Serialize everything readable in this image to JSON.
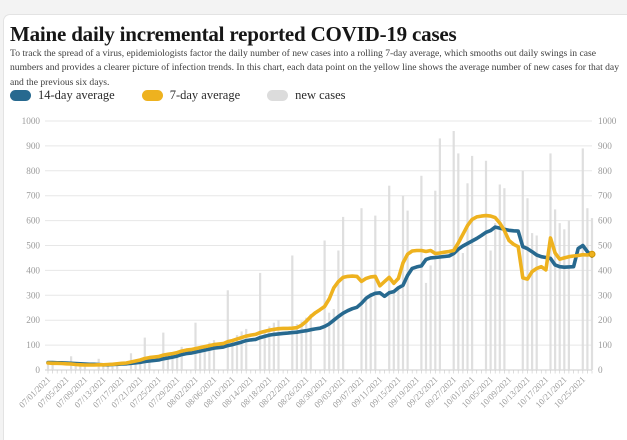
{
  "page": {
    "title": "Maine daily incremental reported COVID-19 cases",
    "description": "To track the spread of a virus, epidemiologists factor the daily number of new cases into a rolling 7-day average, which smooths out daily swings in case numbers and provides a clearer picture of infection trends. In this chart, each data point on the yellow line shows the average number of new cases for that day and the previous six days."
  },
  "colors": {
    "avg14_blue": "#27698f",
    "avg7_yellow": "#eeb21f",
    "new_cases_gray": "#dcdcdc",
    "grid": "#e7e7e7",
    "axis_text": "#9b9b9b"
  },
  "legend": [
    {
      "label": "14-day average",
      "color": "#27698f"
    },
    {
      "label": "7-day average",
      "color": "#eeb21f"
    },
    {
      "label": "new cases",
      "color": "#dcdcdc"
    }
  ],
  "chart_data": {
    "type": "bar+line",
    "title": "Maine daily incremental reported COVID-19 cases",
    "xlabel": "",
    "ylabel": "",
    "ylim": [
      0,
      1000
    ],
    "grid": true,
    "legend_position": "top",
    "y_ticks": [
      0,
      100,
      200,
      300,
      400,
      500,
      600,
      700,
      800,
      900,
      1000
    ],
    "x_tick_labels": [
      "07/01/2021",
      "07/05/2021",
      "07/09/2021",
      "07/13/2021",
      "07/17/2021",
      "07/21/2021",
      "07/25/2021",
      "07/29/2021",
      "08/02/2021",
      "08/06/2021",
      "08/10/2021",
      "08/14/2021",
      "08/18/2021",
      "08/22/2021",
      "08/26/2021",
      "08/30/2021",
      "09/03/2021",
      "09/07/2021",
      "09/11/2021",
      "09/15/2021",
      "09/19/2021",
      "09/23/2021",
      "09/27/2021",
      "10/01/2021",
      "10/05/2021",
      "10/09/2021",
      "10/13/2021",
      "10/17/2021",
      "10/21/2021",
      "10/25/2021"
    ],
    "dates": [
      "07/01/2021",
      "07/02/2021",
      "07/03/2021",
      "07/04/2021",
      "07/05/2021",
      "07/06/2021",
      "07/07/2021",
      "07/08/2021",
      "07/09/2021",
      "07/10/2021",
      "07/11/2021",
      "07/12/2021",
      "07/13/2021",
      "07/14/2021",
      "07/15/2021",
      "07/16/2021",
      "07/17/2021",
      "07/18/2021",
      "07/19/2021",
      "07/20/2021",
      "07/21/2021",
      "07/22/2021",
      "07/23/2021",
      "07/24/2021",
      "07/25/2021",
      "07/26/2021",
      "07/27/2021",
      "07/28/2021",
      "07/29/2021",
      "07/30/2021",
      "07/31/2021",
      "08/01/2021",
      "08/02/2021",
      "08/03/2021",
      "08/04/2021",
      "08/05/2021",
      "08/06/2021",
      "08/07/2021",
      "08/08/2021",
      "08/09/2021",
      "08/10/2021",
      "08/11/2021",
      "08/12/2021",
      "08/13/2021",
      "08/14/2021",
      "08/15/2021",
      "08/16/2021",
      "08/17/2021",
      "08/18/2021",
      "08/19/2021",
      "08/20/2021",
      "08/21/2021",
      "08/22/2021",
      "08/23/2021",
      "08/24/2021",
      "08/25/2021",
      "08/26/2021",
      "08/27/2021",
      "08/28/2021",
      "08/29/2021",
      "08/30/2021",
      "08/31/2021",
      "09/01/2021",
      "09/02/2021",
      "09/03/2021",
      "09/04/2021",
      "09/05/2021",
      "09/06/2021",
      "09/07/2021",
      "09/08/2021",
      "09/09/2021",
      "09/10/2021",
      "09/11/2021",
      "09/12/2021",
      "09/13/2021",
      "09/14/2021",
      "09/15/2021",
      "09/16/2021",
      "09/17/2021",
      "09/18/2021",
      "09/19/2021",
      "09/20/2021",
      "09/21/2021",
      "09/22/2021",
      "09/23/2021",
      "09/24/2021",
      "09/25/2021",
      "09/26/2021",
      "09/27/2021",
      "09/28/2021",
      "09/29/2021",
      "09/30/2021",
      "10/01/2021",
      "10/02/2021",
      "10/03/2021",
      "10/04/2021",
      "10/05/2021",
      "10/06/2021",
      "10/07/2021",
      "10/08/2021",
      "10/09/2021",
      "10/10/2021",
      "10/11/2021",
      "10/12/2021",
      "10/13/2021",
      "10/14/2021",
      "10/15/2021",
      "10/16/2021",
      "10/17/2021",
      "10/18/2021",
      "10/19/2021",
      "10/20/2021",
      "10/21/2021",
      "10/22/2021",
      "10/23/2021",
      "10/24/2021",
      "10/25/2021",
      "10/26/2021",
      "10/27/2021"
    ],
    "series": [
      {
        "name": "new cases",
        "type": "bar",
        "color": "#dcdcdc",
        "values": [
          30,
          25,
          0,
          0,
          0,
          55,
          22,
          20,
          18,
          0,
          0,
          45,
          15,
          20,
          25,
          28,
          0,
          0,
          67,
          35,
          40,
          130,
          45,
          0,
          0,
          150,
          60,
          70,
          75,
          93,
          0,
          0,
          190,
          85,
          100,
          110,
          120,
          0,
          0,
          320,
          115,
          140,
          155,
          165,
          0,
          0,
          390,
          160,
          175,
          190,
          200,
          0,
          0,
          460,
          185,
          195,
          210,
          225,
          0,
          0,
          520,
          230,
          245,
          480,
          615,
          0,
          0,
          0,
          650,
          290,
          310,
          620,
          0,
          0,
          740,
          310,
          330,
          700,
          640,
          0,
          0,
          780,
          350,
          420,
          720,
          930,
          0,
          0,
          960,
          870,
          470,
          750,
          860,
          0,
          0,
          840,
          480,
          590,
          745,
          730,
          0,
          0,
          0,
          800,
          690,
          550,
          540,
          0,
          0,
          870,
          645,
          590,
          565,
          600,
          0,
          0,
          890,
          650,
          610
        ]
      },
      {
        "name": "14-day average",
        "type": "line",
        "color": "#27698f",
        "values": [
          30,
          30,
          29,
          29,
          28,
          27,
          26,
          25,
          24,
          23,
          23,
          22,
          21,
          21,
          22,
          23,
          24,
          25,
          27,
          29,
          31,
          34,
          36,
          38,
          40,
          45,
          48,
          52,
          56,
          62,
          66,
          68,
          72,
          76,
          80,
          84,
          88,
          90,
          92,
          98,
          102,
          107,
          112,
          118,
          121,
          123,
          130,
          135,
          140,
          143,
          145,
          147,
          148,
          150,
          152,
          155,
          158,
          162,
          165,
          168,
          175,
          185,
          200,
          215,
          228,
          238,
          246,
          252,
          268,
          288,
          300,
          308,
          310,
          296,
          310,
          315,
          330,
          340,
          380,
          408,
          414,
          418,
          444,
          450,
          452,
          454,
          456,
          458,
          468,
          485,
          498,
          508,
          518,
          528,
          540,
          553,
          560,
          574,
          570,
          565,
          561,
          559,
          558,
          495,
          487,
          475,
          462,
          455,
          452,
          448,
          422,
          415,
          413,
          414,
          415,
          488,
          500,
          475,
          458
        ]
      },
      {
        "name": "7-day average",
        "type": "line",
        "color": "#eeb21f",
        "values": [
          28,
          27,
          27,
          26,
          25,
          24,
          22,
          21,
          20,
          20,
          20,
          21,
          21,
          22,
          23,
          25,
          27,
          28,
          32,
          36,
          40,
          46,
          50,
          52,
          54,
          60,
          63,
          66,
          70,
          76,
          80,
          82,
          86,
          90,
          94,
          98,
          102,
          104,
          106,
          114,
          118,
          124,
          130,
          136,
          140,
          143,
          150,
          155,
          160,
          163,
          166,
          167,
          167,
          168,
          170,
          180,
          195,
          215,
          230,
          242,
          255,
          285,
          330,
          355,
          372,
          376,
          377,
          376,
          356,
          368,
          374,
          376,
          338,
          355,
          372,
          348,
          368,
          430,
          465,
          478,
          480,
          480,
          476,
          480,
          468,
          470,
          473,
          476,
          480,
          510,
          545,
          580,
          605,
          615,
          618,
          620,
          618,
          612,
          590,
          560,
          520,
          505,
          495,
          370,
          365,
          395,
          408,
          415,
          402,
          530,
          470,
          445,
          450,
          455,
          458,
          460,
          463,
          462,
          465
        ]
      }
    ]
  }
}
